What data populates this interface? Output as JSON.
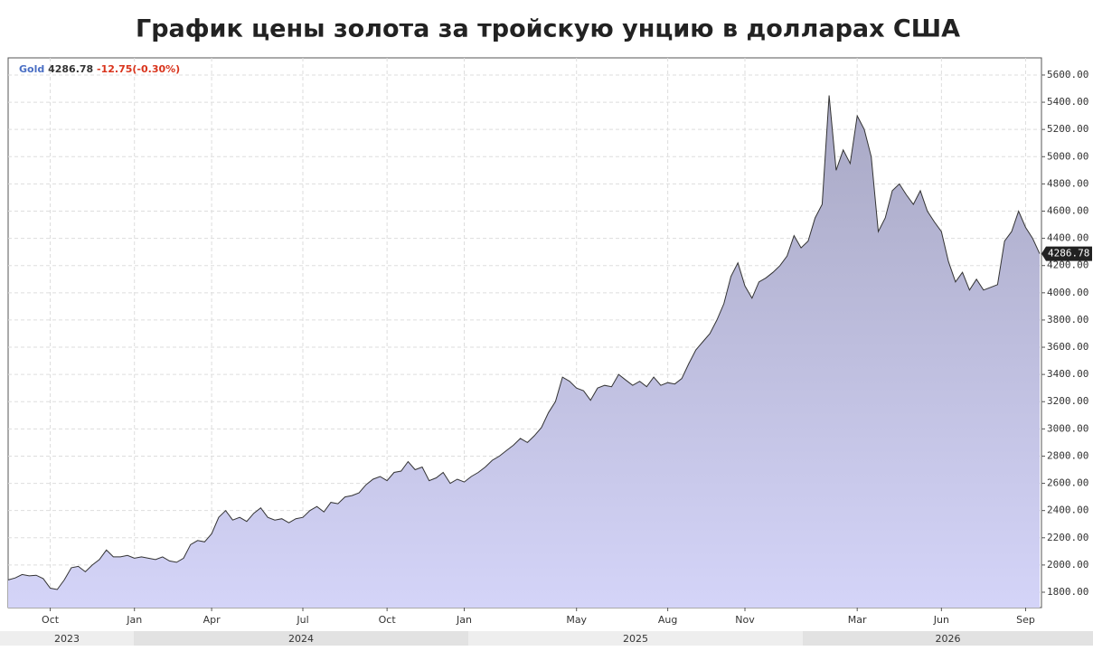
{
  "chart_data": {
    "type": "area",
    "title": "График цены золота за тройскую унцию в долларах США",
    "series_name": "Gold",
    "change": "-12.75(-0.30%)",
    "years": [
      "2023",
      "2024",
      "2025",
      "2026"
    ],
    "categories": [
      null,
      null,
      null,
      null,
      null,
      null,
      "Oct",
      null,
      null,
      null,
      null,
      null,
      null,
      null,
      null,
      null,
      null,
      null,
      "Jan",
      null,
      null,
      null,
      null,
      null,
      null,
      null,
      null,
      null,
      null,
      "Apr",
      null,
      null,
      null,
      null,
      null,
      null,
      null,
      null,
      null,
      null,
      null,
      null,
      "Jul",
      null,
      null,
      null,
      null,
      null,
      null,
      null,
      null,
      null,
      null,
      null,
      "Oct",
      null,
      null,
      null,
      null,
      null,
      null,
      null,
      null,
      null,
      null,
      "Jan",
      null,
      null,
      null,
      null,
      null,
      null,
      null,
      null,
      null,
      null,
      null,
      null,
      null,
      null,
      null,
      "May",
      null,
      null,
      null,
      null,
      null,
      null,
      null,
      null,
      null,
      null,
      null,
      null,
      "Aug",
      null,
      null,
      null,
      null,
      null,
      null,
      null,
      null,
      null,
      null,
      "Nov",
      null,
      null,
      null,
      null,
      null,
      null,
      null,
      null,
      null,
      null,
      null,
      null,
      null,
      null,
      null,
      "Mar",
      null,
      null,
      null,
      null,
      null,
      null,
      null,
      null,
      null,
      null,
      null,
      "Jun",
      null,
      null,
      null,
      null,
      null,
      null,
      null,
      null,
      null,
      null,
      null,
      "Sep",
      null,
      null
    ],
    "values": [
      1890,
      1905,
      1930,
      1920,
      1925,
      1900,
      1830,
      1820,
      1890,
      1980,
      1990,
      1950,
      2000,
      2040,
      2110,
      2060,
      2060,
      2070,
      2050,
      2060,
      2050,
      2040,
      2060,
      2030,
      2020,
      2050,
      2150,
      2180,
      2170,
      2230,
      2350,
      2400,
      2330,
      2350,
      2320,
      2380,
      2420,
      2350,
      2330,
      2340,
      2310,
      2340,
      2350,
      2400,
      2430,
      2390,
      2460,
      2450,
      2500,
      2510,
      2530,
      2590,
      2630,
      2650,
      2620,
      2680,
      2690,
      2760,
      2700,
      2720,
      2620,
      2640,
      2680,
      2600,
      2630,
      2610,
      2650,
      2680,
      2720,
      2770,
      2800,
      2840,
      2880,
      2930,
      2900,
      2950,
      3010,
      3120,
      3200,
      3380,
      3350,
      3300,
      3280,
      3210,
      3300,
      3320,
      3310,
      3400,
      3360,
      3320,
      3350,
      3310,
      3380,
      3320,
      3340,
      3330,
      3370,
      3480,
      3580,
      3640,
      3700,
      3800,
      3920,
      4120,
      4220,
      4050,
      3960,
      4080,
      4110,
      4150,
      4200,
      4270,
      4420,
      4330,
      4380,
      4550,
      4650,
      5450,
      4900,
      5050,
      4950,
      5300,
      5200,
      5000,
      4450,
      4550,
      4750,
      4800,
      4720,
      4650,
      4750,
      4600,
      4520,
      4450,
      4230,
      4080,
      4150,
      4020,
      4100,
      4020,
      4040,
      4060,
      4380,
      4450,
      4600,
      4480,
      4400,
      4286.78
    ],
    "ylim": [
      1687,
      5726
    ],
    "yticks": [
      {
        "value": 1800,
        "label": "1800.00"
      },
      {
        "value": 2000,
        "label": "2000.00"
      },
      {
        "value": 2200,
        "label": "2200.00"
      },
      {
        "value": 2400,
        "label": "2400.00"
      },
      {
        "value": 2600,
        "label": "2600.00"
      },
      {
        "value": 2800,
        "label": "2800.00"
      },
      {
        "value": 3000,
        "label": "3000.00"
      },
      {
        "value": 3200,
        "label": "3200.00"
      },
      {
        "value": 3400,
        "label": "3400.00"
      },
      {
        "value": 3600,
        "label": "3600.00"
      },
      {
        "value": 3800,
        "label": "3800.00"
      },
      {
        "value": 4000,
        "label": "4000.00"
      },
      {
        "value": 4200,
        "label": "4200.00"
      },
      {
        "value": 4400,
        "label": "4400.00"
      },
      {
        "value": 4600,
        "label": "4600.00"
      },
      {
        "value": 4800,
        "label": "4800.00"
      },
      {
        "value": 5000,
        "label": "5000.00"
      },
      {
        "value": 5200,
        "label": "5200.00"
      },
      {
        "value": 5400,
        "label": "5400.00"
      },
      {
        "value": 5600,
        "label": "5600.00"
      }
    ],
    "grid": true,
    "line_color": "#333333",
    "fill_top": "#a8a8c4",
    "fill_bottom": "#d4d4f8",
    "name_color": "#4a6fc4",
    "change_color": "#d9341c"
  }
}
